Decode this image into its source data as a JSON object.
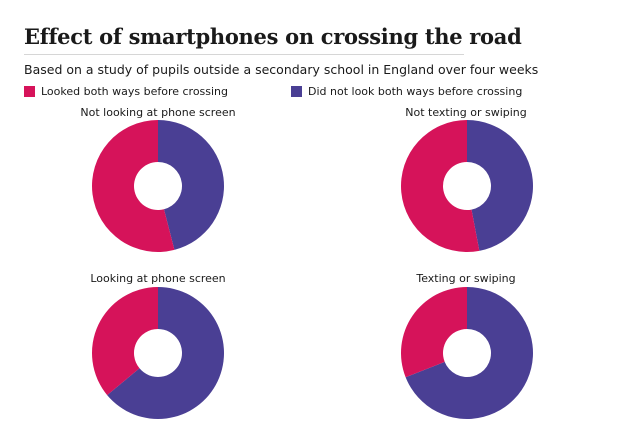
{
  "header": {
    "title": "Effect of smartphones on crossing the road",
    "subtitle": "Based on a study of pupils outside a secondary school in England over four weeks"
  },
  "colors": {
    "looked": "#d6135a",
    "not_looked": "#4a3f94"
  },
  "chart_data": [
    {
      "type": "pie",
      "title": "Not looking at phone screen",
      "labels": [
        "Looked both ways before crossing",
        "Did not look both ways before crossing"
      ],
      "values": [
        54,
        46
      ]
    },
    {
      "type": "pie",
      "title": "Not texting or swiping",
      "labels": [
        "Looked both ways before crossing",
        "Did not look both ways before crossing"
      ],
      "values": [
        53,
        47
      ]
    },
    {
      "type": "pie",
      "title": "Looking at phone screen",
      "labels": [
        "Looked both ways before crossing",
        "Did not look both ways before crossing"
      ],
      "values": [
        36,
        64
      ]
    },
    {
      "type": "pie",
      "title": "Texting or swiping",
      "labels": [
        "Looked both ways before crossing",
        "Did not look both ways before crossing"
      ],
      "values": [
        31,
        69
      ]
    }
  ],
  "legend": {
    "items": [
      {
        "label": "Looked both ways before crossing"
      },
      {
        "label": "Did not look both ways before crossing"
      }
    ]
  }
}
